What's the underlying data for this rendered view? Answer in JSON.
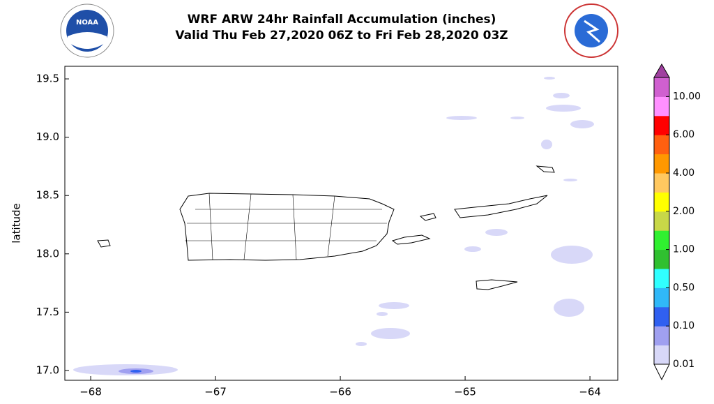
{
  "chart_data": {
    "type": "map",
    "title": "WRF ARW 24hr Rainfall Accumulation (inches)",
    "subtitle": "Valid Thu Feb 27,2020 06Z to Fri Feb 28,2020 03Z",
    "logo_text": "NOAA",
    "ylabel": "latitude",
    "xlim": [
      -68.207,
      -63.777
    ],
    "ylim": [
      16.916,
      19.608
    ],
    "xticks": [
      {
        "value": -68,
        "label": "−68"
      },
      {
        "value": -67,
        "label": "−67"
      },
      {
        "value": -66,
        "label": "−66"
      },
      {
        "value": -65,
        "label": "−65"
      },
      {
        "value": -64,
        "label": "−64"
      }
    ],
    "yticks": [
      {
        "value": 17,
        "label": "17.0"
      },
      17.5,
      {
        "value": 18,
        "label": "18.0"
      },
      18.5,
      {
        "value": 19,
        "label": "19.0"
      },
      19.5
    ],
    "colorbar": {
      "ticks": [
        "0.01",
        "0.10",
        "0.50",
        "1.00",
        "2.00",
        "4.00",
        "6.00",
        "10.00"
      ],
      "colors": [
        "#d8d8f8",
        "#a0a0f0",
        "#3060f0",
        "#30b8f8",
        "#30ffff",
        "#30c030",
        "#30f030",
        "#c8d848",
        "#ffff00",
        "#ffc860",
        "#ff9800",
        "#ff6010",
        "#ff0000",
        "#ff90ff",
        "#d060d0"
      ],
      "over_color": "#a040a0"
    }
  }
}
